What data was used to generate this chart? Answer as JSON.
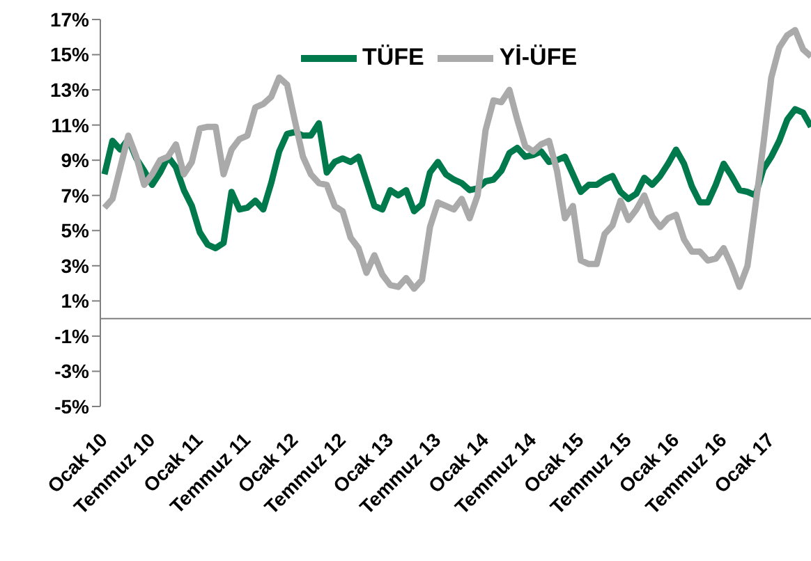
{
  "chart_data": {
    "type": "line",
    "categories": [
      "Ocak 10",
      null,
      null,
      null,
      null,
      null,
      "Temmuz 10",
      null,
      null,
      null,
      null,
      null,
      "Ocak 11",
      null,
      null,
      null,
      null,
      null,
      "Temmuz 11",
      null,
      null,
      null,
      null,
      null,
      "Ocak 12",
      null,
      null,
      null,
      null,
      null,
      "Temmuz 12",
      null,
      null,
      null,
      null,
      null,
      "Ocak 13",
      null,
      null,
      null,
      null,
      null,
      "Temmuz 13",
      null,
      null,
      null,
      null,
      null,
      "Ocak 14",
      null,
      null,
      null,
      null,
      null,
      "Temmuz 14",
      null,
      null,
      null,
      null,
      null,
      "Ocak 15",
      null,
      null,
      null,
      null,
      null,
      "Temmuz 15",
      null,
      null,
      null,
      null,
      null,
      "Ocak 16",
      null,
      null,
      null,
      null,
      null,
      "Temmuz 16",
      null,
      null,
      null,
      null,
      null,
      "Ocak 17",
      null,
      null,
      null,
      null,
      null
    ],
    "series": [
      {
        "name": "TÜFE",
        "color": "#007a4d",
        "values": [
          8.2,
          10.1,
          9.6,
          10.2,
          9.1,
          8.4,
          7.6,
          8.3,
          9.2,
          8.6,
          7.3,
          6.4,
          4.9,
          4.2,
          4.0,
          4.3,
          7.2,
          6.2,
          6.3,
          6.7,
          6.2,
          7.7,
          9.5,
          10.5,
          10.6,
          10.4,
          10.4,
          11.1,
          8.3,
          8.9,
          9.1,
          8.9,
          9.2,
          7.8,
          6.4,
          6.2,
          7.3,
          7.0,
          7.3,
          6.1,
          6.5,
          8.3,
          8.9,
          8.2,
          7.9,
          7.7,
          7.3,
          7.4,
          7.8,
          7.9,
          8.4,
          9.4,
          9.7,
          9.2,
          9.3,
          9.5,
          8.9,
          9.0,
          9.2,
          8.2,
          7.2,
          7.6,
          7.6,
          7.9,
          8.1,
          7.2,
          6.8,
          7.1,
          8.0,
          7.6,
          8.1,
          8.8,
          9.6,
          8.8,
          7.5,
          6.6,
          6.6,
          7.6,
          8.8,
          8.1,
          7.3,
          7.2,
          7.0,
          8.5,
          9.2,
          10.1,
          11.3,
          11.9,
          11.7,
          10.9
        ]
      },
      {
        "name": "Yİ-ÜFE",
        "color": "#aaaaaa",
        "values": [
          6.3,
          6.8,
          8.6,
          10.4,
          9.2,
          7.6,
          8.2,
          9.0,
          9.2,
          9.9,
          8.2,
          8.9,
          10.8,
          10.9,
          10.9,
          8.2,
          9.6,
          10.2,
          10.4,
          12.0,
          12.2,
          12.6,
          13.7,
          13.3,
          11.2,
          9.2,
          8.2,
          7.7,
          7.6,
          6.4,
          6.1,
          4.6,
          4.0,
          2.6,
          3.6,
          2.5,
          1.9,
          1.8,
          2.3,
          1.7,
          2.2,
          5.2,
          6.6,
          6.4,
          6.2,
          6.8,
          5.7,
          7.0,
          10.7,
          12.4,
          12.3,
          13.0,
          11.3,
          9.8,
          9.5,
          9.9,
          10.1,
          8.4,
          5.7,
          6.4,
          3.3,
          3.1,
          3.1,
          4.8,
          5.3,
          6.7,
          5.6,
          6.2,
          7.0,
          5.8,
          5.2,
          5.7,
          5.9,
          4.5,
          3.8,
          3.8,
          3.3,
          3.4,
          4.0,
          3.0,
          1.8,
          3.0,
          6.4,
          9.9,
          13.7,
          15.4,
          16.1,
          16.4,
          15.3,
          14.9
        ]
      }
    ],
    "ylim": [
      -5,
      17
    ],
    "yticks": [
      {
        "value": -5,
        "label": "-5%"
      },
      {
        "value": -3,
        "label": "-3%"
      },
      {
        "value": -1,
        "label": "-1%"
      },
      {
        "value": 1,
        "label": "1%"
      },
      {
        "value": 3,
        "label": "3%"
      },
      {
        "value": 5,
        "label": "5%"
      },
      {
        "value": 7,
        "label": "7%"
      },
      {
        "value": 9,
        "label": "9%"
      },
      {
        "value": 11,
        "label": "11%"
      },
      {
        "value": 13,
        "label": "13%"
      },
      {
        "value": 15,
        "label": "15%"
      },
      {
        "value": 17,
        "label": "17%"
      }
    ],
    "legend": "top",
    "grid": false,
    "marker": "none",
    "line_style": "solid"
  }
}
